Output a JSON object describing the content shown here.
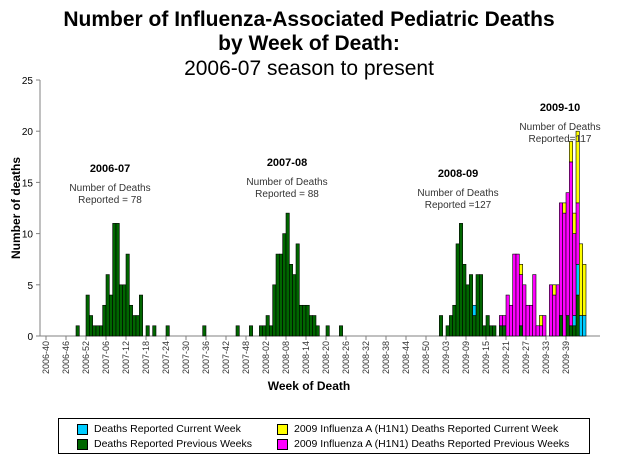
{
  "title": {
    "line1": "Number of Influenza-Associated Pediatric Deaths",
    "line2": "by Week of Death:",
    "line3": "2006-07 season to present"
  },
  "chart_data": {
    "type": "bar",
    "stacked": true,
    "xlabel": "Week of Death",
    "ylabel": "Number of deaths",
    "ylim": [
      0,
      25
    ],
    "yticks": [
      0,
      5,
      10,
      15,
      20,
      25
    ],
    "xticks": [
      "2006-40",
      "2006-46",
      "2006-52",
      "2007-06",
      "2007-12",
      "2007-18",
      "2007-24",
      "2007-30",
      "2007-36",
      "2007-42",
      "2007-48",
      "2008-02",
      "2008-08",
      "2008-14",
      "2008-20",
      "2008-26",
      "2008-32",
      "2008-38",
      "2008-44",
      "2008-50",
      "2009-03",
      "2009-09",
      "2009-15",
      "2009-21",
      "2009-27",
      "2009-33",
      "2009-39"
    ],
    "grid": false,
    "legend_placement": "bottom",
    "series": [
      {
        "name": "Deaths Reported Previous Weeks",
        "color": "#006600",
        "values": {
          "2006-49": 1,
          "2006-52": 4,
          "2007-01": 2,
          "2007-02": 1,
          "2007-03": 1,
          "2007-04": 1,
          "2007-05": 3,
          "2007-06": 6,
          "2007-07": 4,
          "2007-08": 11,
          "2007-09": 11,
          "2007-10": 5,
          "2007-11": 5,
          "2007-12": 8,
          "2007-13": 3,
          "2007-14": 2,
          "2007-15": 2,
          "2007-16": 4,
          "2007-18": 1,
          "2007-20": 1,
          "2007-24": 1,
          "2007-35": 1,
          "2007-45": 1,
          "2007-49": 1,
          "2007-52": 1,
          "2008-01": 1,
          "2008-02": 2,
          "2008-03": 1,
          "2008-04": 5,
          "2008-05": 8,
          "2008-06": 8,
          "2008-07": 10,
          "2008-08": 12,
          "2008-09": 7,
          "2008-10": 6,
          "2008-11": 9,
          "2008-12": 3,
          "2008-13": 3,
          "2008-14": 3,
          "2008-15": 2,
          "2008-16": 2,
          "2008-17": 1,
          "2008-20": 1,
          "2008-24": 1,
          "2009-01": 2,
          "2009-03": 1,
          "2009-04": 2,
          "2009-05": 3,
          "2009-06": 9,
          "2009-07": 11,
          "2009-08": 7,
          "2009-09": 5,
          "2009-10": 6,
          "2009-11": 2,
          "2009-12": 6,
          "2009-13": 6,
          "2009-14": 1,
          "2009-15": 2,
          "2009-16": 1,
          "2009-17": 1,
          "2009-19": 1,
          "2009-20": 1,
          "2009-25": 1,
          "2009-37": 2,
          "2009-39": 2,
          "2009-40": 1,
          "2009-41": 1,
          "2009-42": 4
        }
      },
      {
        "name": "Deaths Reported Current Week",
        "color": "#00ccff",
        "values": {
          "2009-11": 1,
          "2009-41": 1,
          "2009-42": 3,
          "2009-43": 2,
          "2009-44": 2
        }
      },
      {
        "name": "2009 Influenza A (H1N1) Deaths Reported Previous Weeks",
        "color": "#ff00ff",
        "values": {
          "2009-19": 1,
          "2009-20": 1,
          "2009-21": 4,
          "2009-22": 3,
          "2009-23": 8,
          "2009-24": 8,
          "2009-25": 5,
          "2009-26": 5,
          "2009-27": 3,
          "2009-28": 3,
          "2009-29": 6,
          "2009-30": 1,
          "2009-31": 1,
          "2009-32": 2,
          "2009-34": 5,
          "2009-35": 4,
          "2009-36": 5,
          "2009-37": 11,
          "2009-38": 12,
          "2009-39": 12,
          "2009-40": 16,
          "2009-41": 8,
          "2009-42": 6
        }
      },
      {
        "name": "2009 Influenza A (H1N1) Deaths Reported Current Week",
        "color": "#ffff00",
        "values": {
          "2009-25": 1,
          "2009-31": 1,
          "2009-35": 1,
          "2009-38": 1,
          "2009-40": 2,
          "2009-41": 2,
          "2009-42": 7,
          "2009-43": 7,
          "2009-44": 5
        }
      }
    ],
    "annotations": [
      {
        "season": "2006-07",
        "line1": "Number of Deaths",
        "line2": "Reported = 78"
      },
      {
        "season": "2007-08",
        "line1": "Number of Deaths",
        "line2": "Reported = 88"
      },
      {
        "season": "2008-09",
        "line1": "Number of Deaths",
        "line2": "Reported =127"
      },
      {
        "season": "2009-10",
        "line1": "Number of Deaths",
        "line2": "Reported=117"
      }
    ]
  }
}
